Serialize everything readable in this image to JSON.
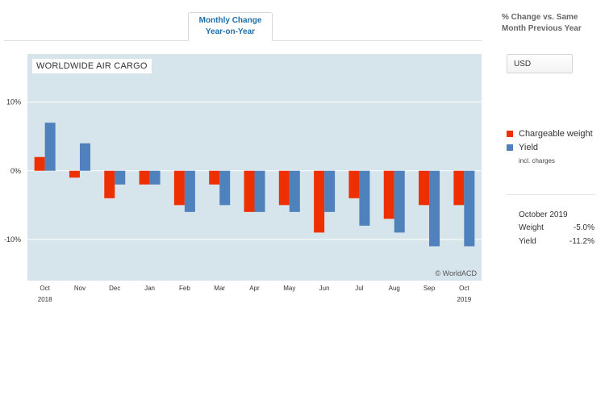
{
  "tab": {
    "line1": "Monthly Change",
    "line2": "Year-on-Year"
  },
  "sidebar": {
    "title_line1": "% Change vs. Same",
    "title_line2": "Month Previous Year",
    "currency": "USD",
    "legend": [
      {
        "label": "Chargeable weight",
        "color": "#ee3000"
      },
      {
        "label": "Yield",
        "color": "#4f81bd"
      }
    ],
    "legend_note": "incl. charges",
    "summary": {
      "month": "October 2019",
      "rows": [
        {
          "label": "Weight",
          "value": "-5.0%"
        },
        {
          "label": "Yield",
          "value": "-11.2%"
        }
      ]
    }
  },
  "chart_data": {
    "type": "bar",
    "title": "WORLDWIDE AIR CARGO",
    "watermark": "© WorldACD",
    "categories": [
      "Oct",
      "Nov",
      "Dec",
      "Jan",
      "Feb",
      "Mar",
      "Apr",
      "May",
      "Jun",
      "Jul",
      "Aug",
      "Sep",
      "Oct"
    ],
    "year_labels": [
      "2018",
      "",
      "",
      "",
      "",
      "",
      "",
      "",
      "",
      "",
      "",
      "",
      "2019"
    ],
    "ytick_labels": [
      "10%",
      "0%",
      "-10%"
    ],
    "ytick_values": [
      10,
      0,
      -10
    ],
    "ylim": [
      -16,
      17
    ],
    "series": [
      {
        "name": "Chargeable weight",
        "color": "#ee3000",
        "values": [
          2,
          -1,
          -4,
          -2,
          -5,
          -2,
          -6,
          -5,
          -9,
          -4,
          -7,
          -5,
          -5
        ]
      },
      {
        "name": "Yield",
        "color": "#4f81bd",
        "values": [
          7,
          4,
          -2,
          -2,
          -6,
          -5,
          -6,
          -6,
          -6,
          -8,
          -9,
          -11,
          -11
        ]
      }
    ],
    "background": "#d6e4ec",
    "grid": true
  }
}
